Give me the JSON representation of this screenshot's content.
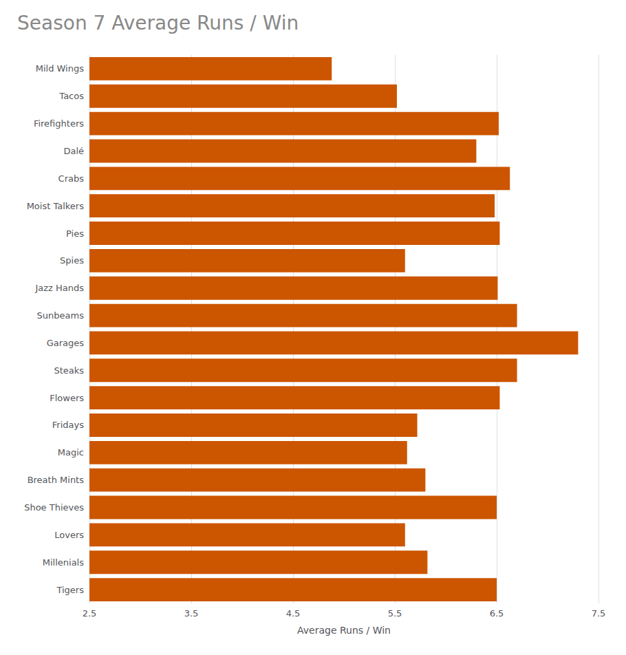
{
  "chart_data": {
    "type": "bar",
    "orientation": "horizontal",
    "title": "Season 7 Average Runs / Win",
    "xlabel": "Average Runs / Win",
    "categories": [
      "Mild Wings",
      "Tacos",
      "Firefighters",
      "Dalé",
      "Crabs",
      "Moist Talkers",
      "Pies",
      "Spies",
      "Jazz Hands",
      "Sunbeams",
      "Garages",
      "Steaks",
      "Flowers",
      "Fridays",
      "Magic",
      "Breath Mints",
      "Shoe Thieves",
      "Lovers",
      "Millenials",
      "Tigers"
    ],
    "values": [
      4.88,
      5.52,
      6.52,
      6.3,
      6.63,
      6.48,
      6.53,
      5.6,
      6.51,
      6.7,
      7.3,
      6.7,
      6.53,
      5.72,
      5.62,
      5.8,
      6.5,
      5.6,
      5.82,
      6.5
    ],
    "color": "#cc5500",
    "xlim": [
      2.5,
      7.5
    ],
    "xticks": [
      2.5,
      3.5,
      4.5,
      5.5,
      6.5,
      7.5
    ],
    "grid": true
  }
}
